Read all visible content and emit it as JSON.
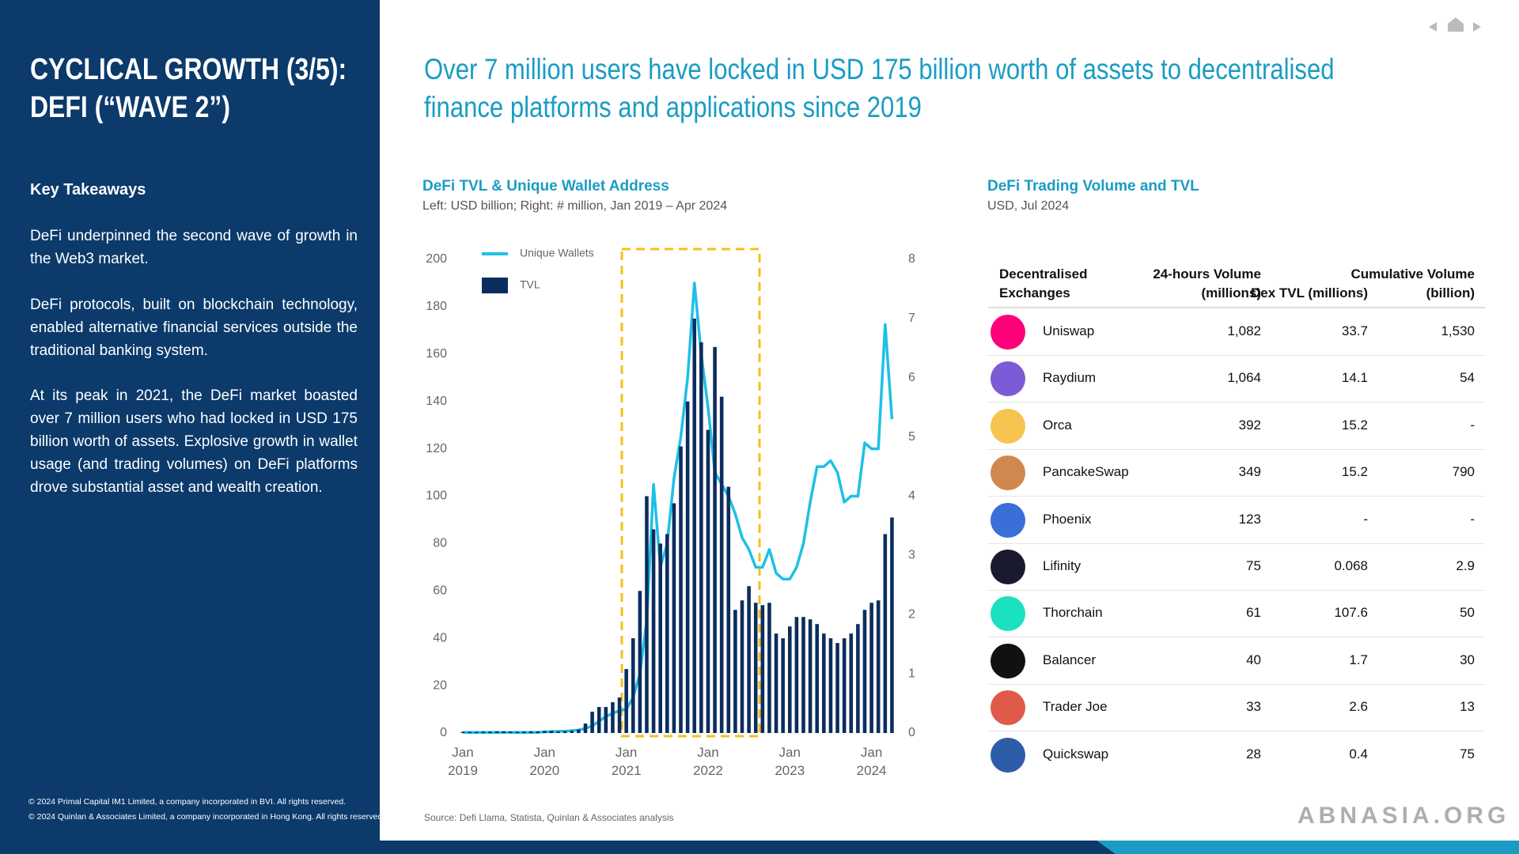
{
  "sidebar": {
    "title": "CYCLICAL GROWTH (3/5): DEFI (“WAVE 2”)",
    "heading": "Key Takeaways",
    "paragraphs": [
      "DeFi underpinned the second wave of growth in the Web3 market.",
      "DeFi protocols, built on blockchain technology, enabled alternative financial services outside the traditional banking system.",
      "At its peak in 2021, the DeFi market boasted over 7 million users who had locked in USD 175 billion worth of assets. Explosive growth in wallet usage (and trading volumes) on DeFi platforms drove substantial asset and wealth creation."
    ],
    "footnotes": [
      "© 2024 Primal Capital IM1 Limited, a company incorporated in BVI. All rights reserved.",
      "© 2024 Quinlan & Associates Limited, a company incorporated in Hong Kong. All rights reserved."
    ]
  },
  "headline": "Over 7 million users have locked in USD 175 billion worth of assets to decentralised finance platforms and applications since 2019",
  "chart_data": {
    "type": "bar",
    "title": "DeFi TVL & Unique Wallet Address",
    "subtitle": "Left: USD billion; Right: # million, Jan 2019 – Apr 2024",
    "categories": [
      "Jan 2019",
      null,
      null,
      null,
      null,
      null,
      null,
      null,
      null,
      null,
      null,
      null,
      "Jan 2020",
      null,
      null,
      null,
      null,
      null,
      null,
      null,
      null,
      null,
      null,
      null,
      "Jan 2021",
      null,
      null,
      null,
      null,
      null,
      null,
      null,
      null,
      null,
      null,
      null,
      "Jan 2022",
      null,
      null,
      null,
      null,
      null,
      null,
      null,
      null,
      null,
      null,
      null,
      "Jan 2023",
      null,
      null,
      null,
      null,
      null,
      null,
      null,
      null,
      null,
      null,
      null,
      "Jan 2024",
      null,
      null,
      null
    ],
    "series": [
      {
        "name": "Unique Wallets",
        "type": "line",
        "axis": "y2",
        "color": "#1ec0e6",
        "values": [
          0.01,
          0.01,
          0.01,
          0.01,
          0.01,
          0.01,
          0.01,
          0.01,
          0.01,
          0.01,
          0.01,
          0.01,
          0.02,
          0.02,
          0.03,
          0.03,
          0.04,
          0.05,
          0.08,
          0.12,
          0.2,
          0.28,
          0.33,
          0.38,
          0.4,
          0.6,
          1.0,
          1.9,
          4.2,
          2.8,
          3.2,
          4.3,
          5.0,
          6.0,
          7.6,
          6.4,
          5.5,
          4.4,
          4.2,
          4.0,
          3.7,
          3.3,
          3.1,
          2.8,
          2.8,
          3.1,
          2.7,
          2.6,
          2.6,
          2.8,
          3.2,
          3.9,
          4.5,
          4.5,
          4.6,
          4.4,
          3.9,
          4.0,
          4.0,
          4.9,
          4.8,
          4.8,
          6.9,
          5.3
        ]
      },
      {
        "name": "TVL",
        "type": "bar",
        "color": "#0b2d5e",
        "values": [
          0.5,
          0.5,
          0.5,
          0.6,
          0.6,
          0.7,
          0.7,
          0.6,
          0.5,
          0.6,
          0.7,
          0.7,
          0.8,
          1,
          0.6,
          0.8,
          1,
          1.5,
          4,
          9,
          11,
          11,
          13,
          15,
          27,
          40,
          60,
          100,
          86,
          80,
          84,
          97,
          121,
          140,
          175,
          165,
          128,
          163,
          142,
          104,
          52,
          56,
          62,
          55,
          54,
          55,
          42,
          40,
          45,
          49,
          49,
          48,
          46,
          42,
          40,
          38,
          40,
          42,
          46,
          52,
          55,
          56,
          84,
          91
        ]
      }
    ],
    "ylim": [
      0,
      200
    ],
    "yticks": [
      0,
      20,
      40,
      60,
      80,
      100,
      120,
      140,
      160,
      180,
      200
    ],
    "y2lim": [
      0,
      8
    ],
    "y2ticks": [
      0,
      1,
      2,
      3,
      4,
      5,
      6,
      7,
      8
    ],
    "legend": "top-left",
    "source": "Source: Defi Llama, Statista, Quinlan & Associates analysis"
  },
  "table": {
    "title": "DeFi Trading Volume and TVL",
    "subtitle": "USD, Jul 2024",
    "columns": [
      "Decentralised Exchanges",
      "24-hours Volume (millions)",
      "Dex TVL (millions)",
      "Cumulative Volume (billion)"
    ],
    "rows": [
      [
        "Uniswap",
        "1,082",
        "33.7",
        "1,530"
      ],
      [
        "Raydium",
        "1,064",
        "14.1",
        "54"
      ],
      [
        "Orca",
        "392",
        "15.2",
        "-"
      ],
      [
        "PancakeSwap",
        "349",
        "15.2",
        "790"
      ],
      [
        "Phoenix",
        "123",
        "-",
        "-"
      ],
      [
        "Lifinity",
        "75",
        "0.068",
        "2.9"
      ],
      [
        "Thorchain",
        "61",
        "107.6",
        "50"
      ],
      [
        "Balancer",
        "40",
        "1.7",
        "30"
      ],
      [
        "Trader Joe",
        "33",
        "2.6",
        "13"
      ],
      [
        "Quickswap",
        "28",
        "0.4",
        "75"
      ]
    ]
  },
  "watermark": "ABNASIA.ORG"
}
